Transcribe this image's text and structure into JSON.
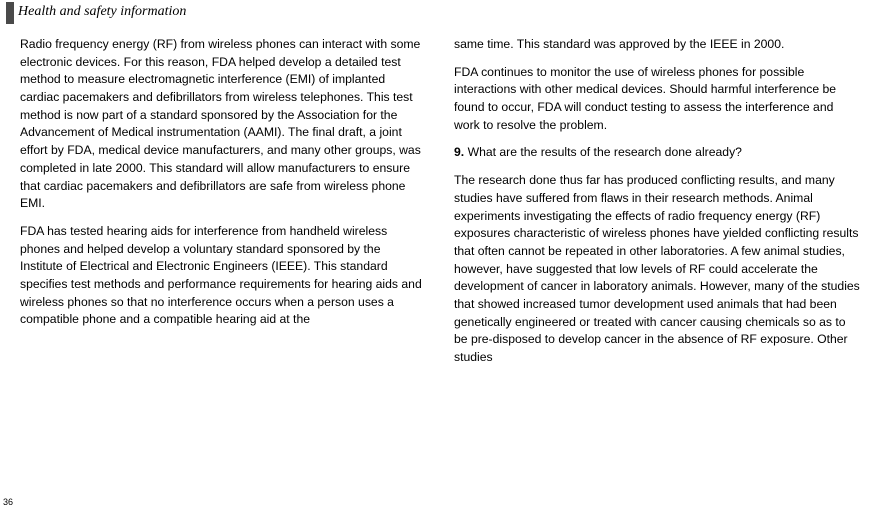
{
  "header": {
    "title": "Health and safety information"
  },
  "pageNumber": "36",
  "col1": {
    "p1": "Radio frequency energy (RF) from wireless phones can interact with some electronic devices. For this reason, FDA helped develop a detailed test method to measure electromagnetic interference (EMI) of implanted cardiac pacemakers and defibrillators from wireless telephones. This test method is now part of a standard sponsored by the Association for the Advancement of Medical instrumentation (AAMI). The final draft, a joint effort by FDA, medical device manufacturers, and many other groups, was completed in late 2000. This standard will allow manufacturers to ensure that cardiac pacemakers and defibrillators are safe from wireless phone EMI.",
    "p2": "FDA has tested hearing aids for interference from handheld wireless phones and helped develop a voluntary standard sponsored by the Institute of Electrical and Electronic Engineers (IEEE). This standard specifies test methods and performance requirements for hearing aids and wireless phones so that no interference occurs when a person uses a compatible phone and a compatible hearing aid at the"
  },
  "col2": {
    "p1": "same time. This standard was approved by the IEEE in 2000.",
    "p2": "FDA continues to monitor the use of wireless phones for possible interactions with other medical devices. Should harmful interference be found to occur, FDA will conduct testing to assess the interference and work to resolve the problem.",
    "q9num": "9.",
    "q9text": "What are the results of the research done already?",
    "p3": "The research done thus far has produced conflicting results, and many studies have suffered from flaws in their research methods. Animal experiments investigating the effects of radio frequency energy (RF) exposures characteristic of wireless phones have yielded conflicting results that often cannot be repeated in other laboratories. A few animal studies, however, have suggested that low levels of RF could accelerate the development of cancer in laboratory animals. However, many of the studies that showed increased tumor development used animals that had been genetically engineered or treated with cancer causing chemicals so as to be pre-disposed to develop cancer in the absence of RF exposure. Other studies"
  }
}
